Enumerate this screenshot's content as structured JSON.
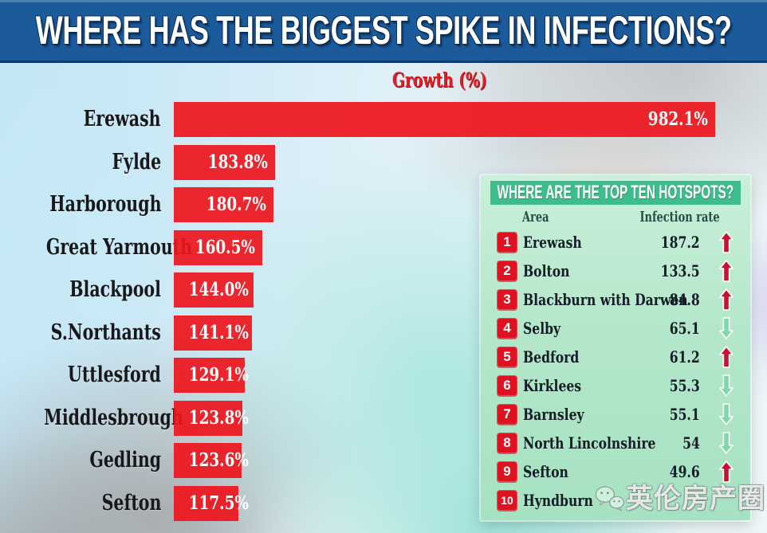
{
  "page": {
    "title": "WHERE HAS THE BIGGEST SPIKE IN INFECTIONS?"
  },
  "chart_data": {
    "type": "bar",
    "orientation": "horizontal",
    "title": "Growth (%)",
    "categories": [
      "Erewash",
      "Fylde",
      "Harborough",
      "Great Yarmouth",
      "Blackpool",
      "S.Northants",
      "Uttlesford",
      "Middlesbrough",
      "Gedling",
      "Sefton"
    ],
    "values": [
      982.1,
      183.8,
      180.7,
      160.5,
      144.0,
      141.1,
      129.1,
      123.8,
      123.6,
      117.5
    ],
    "value_labels": [
      "982.1%",
      "183.8%",
      "180.7%",
      "160.5%",
      "144.0%",
      "141.1%",
      "129.1%",
      "123.8%",
      "123.6%",
      "117.5%"
    ],
    "xlim": [
      0,
      982.1
    ],
    "grid": false,
    "legend": "none",
    "bar_color": "#ee151c",
    "value_label_color": "#ffffff",
    "category_label_color": "#17181c",
    "title_color": "#dd2028"
  },
  "hotspots_table": {
    "title": "WHERE ARE THE TOP TEN HOTSPOTS?",
    "columns": [
      "Area",
      "Infection rate"
    ],
    "rows": [
      {
        "rank": "1",
        "area": "Erewash",
        "rate": "187.2",
        "trend": "up"
      },
      {
        "rank": "2",
        "area": "Bolton",
        "rate": "133.5",
        "trend": "up"
      },
      {
        "rank": "3",
        "area": "Blackburn with Darwen",
        "rate": "84.8",
        "trend": "up"
      },
      {
        "rank": "4",
        "area": "Selby",
        "rate": "65.1",
        "trend": "down"
      },
      {
        "rank": "5",
        "area": "Bedford",
        "rate": "61.2",
        "trend": "up"
      },
      {
        "rank": "6",
        "area": "Kirklees",
        "rate": "55.3",
        "trend": "down"
      },
      {
        "rank": "7",
        "area": "Barnsley",
        "rate": "55.1",
        "trend": "down"
      },
      {
        "rank": "8",
        "area": "North Lincolnshire",
        "rate": "54",
        "trend": "down"
      },
      {
        "rank": "9",
        "area": "Sefton",
        "rate": "49.6",
        "trend": "up"
      },
      {
        "rank": "10",
        "area": "Hyndburn",
        "rate": "",
        "trend": ""
      }
    ],
    "colors": {
      "band": "#3dbd8d",
      "background_top": "#c9f0da",
      "background_bottom": "#a6e2c2",
      "badge": "#df1222",
      "up_arrow": "#c51230",
      "down_arrow": "#7fd7ab",
      "header_text": "#2b4a4a",
      "row_text": "#141c28"
    }
  },
  "banner": {
    "background": "#1b5a9b",
    "text_color": "#ffffff"
  },
  "watermark": {
    "text": "英伦房产圈",
    "logo": "wechat-logo-icon"
  },
  "icons": {
    "up": "trend-up-arrow-icon",
    "down": "trend-down-arrow-icon"
  }
}
